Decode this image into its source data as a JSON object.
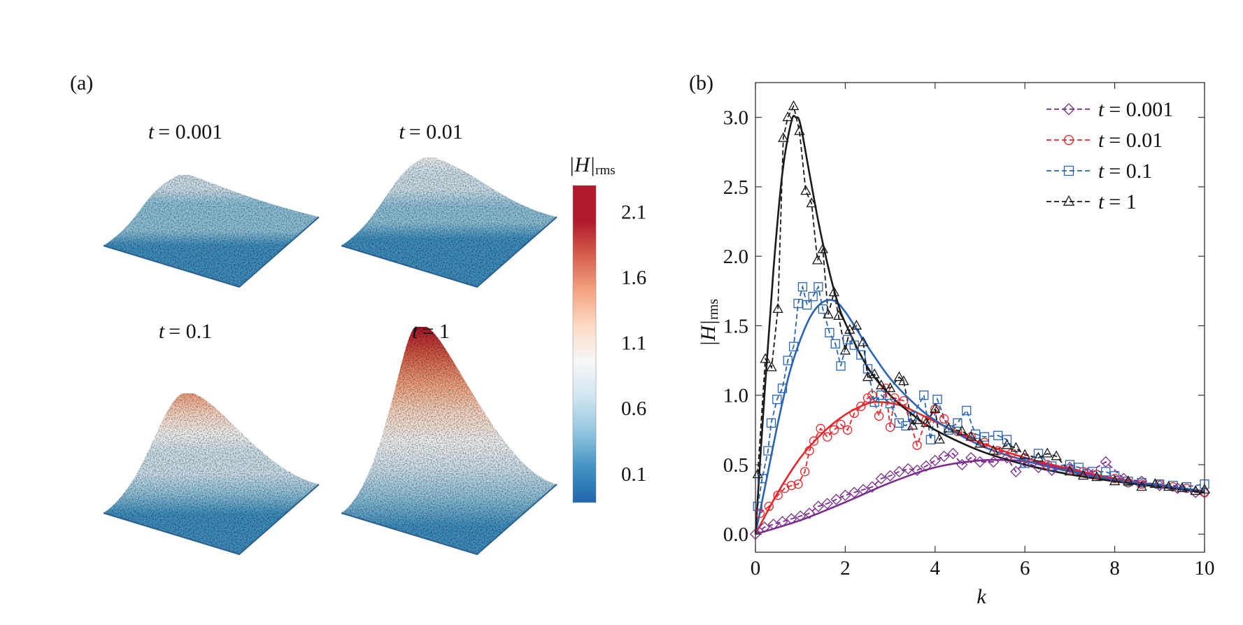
{
  "panel_a": {
    "label": "(a)",
    "surfaces": [
      {
        "title": "t = 0.001",
        "t": "t",
        "val": "= 0.001",
        "peak_level": 0.75
      },
      {
        "title": "t = 0.01",
        "t": "t",
        "val": "= 0.01",
        "peak_level": 0.9
      },
      {
        "title": "t = 0.1",
        "t": "t",
        "val": "= 0.1",
        "peak_level": 1.4
      },
      {
        "title": "t = 1",
        "t": "t",
        "val": "= 1",
        "peak_level": 2.2
      }
    ],
    "colorbar": {
      "label_main": "|H|",
      "label_sub": "rms",
      "ticks": [
        "2.1",
        "1.6",
        "1.1",
        "0.6",
        "0.1"
      ],
      "tick_values": [
        2.1,
        1.6,
        1.1,
        0.6,
        0.1
      ],
      "range": [
        -0.12,
        2.3
      ],
      "colormap": [
        "#2166ac",
        "#4393c3",
        "#92c5de",
        "#d1e5f0",
        "#f7f7f7",
        "#fddbc7",
        "#f4a582",
        "#d6604d",
        "#b2182b",
        "#b2182b"
      ]
    }
  },
  "chart_data": {
    "type": "line",
    "panel_label": "(b)",
    "xlabel": "k",
    "ylabel_main": "|H|",
    "ylabel_sub": "rms",
    "xlim": [
      0,
      10
    ],
    "ylim": [
      -0.13,
      3.25
    ],
    "xticks": [
      "0",
      "2",
      "4",
      "6",
      "8",
      "10"
    ],
    "xtick_values": [
      0,
      2,
      4,
      6,
      8,
      10
    ],
    "yticks": [
      "0.0",
      "0.5",
      "1.0",
      "1.5",
      "2.0",
      "2.5",
      "3.0"
    ],
    "ytick_values": [
      0,
      0.5,
      1.0,
      1.5,
      2.0,
      2.5,
      3.0
    ],
    "grid": false,
    "legend_position": "top-right",
    "series": [
      {
        "name": "t = 0.001",
        "t": "t",
        "val": "= 0.001",
        "color": "#7b2d8e",
        "marker": "diamond",
        "points": [
          [
            0,
            0.0
          ],
          [
            0.2,
            0.05
          ],
          [
            0.4,
            0.07
          ],
          [
            0.6,
            0.09
          ],
          [
            0.8,
            0.11
          ],
          [
            1.0,
            0.13
          ],
          [
            1.2,
            0.15
          ],
          [
            1.4,
            0.2
          ],
          [
            1.6,
            0.22
          ],
          [
            1.8,
            0.25
          ],
          [
            2.0,
            0.28
          ],
          [
            2.2,
            0.3
          ],
          [
            2.4,
            0.32
          ],
          [
            2.6,
            0.34
          ],
          [
            2.8,
            0.4
          ],
          [
            3.0,
            0.42
          ],
          [
            3.2,
            0.45
          ],
          [
            3.4,
            0.47
          ],
          [
            3.6,
            0.46
          ],
          [
            3.8,
            0.49
          ],
          [
            4.0,
            0.53
          ],
          [
            4.2,
            0.56
          ],
          [
            4.4,
            0.58
          ],
          [
            4.6,
            0.5
          ],
          [
            4.8,
            0.55
          ],
          [
            5.0,
            0.52
          ],
          [
            5.3,
            0.52
          ],
          [
            5.6,
            0.55
          ],
          [
            5.8,
            0.45
          ],
          [
            6.0,
            0.52
          ],
          [
            6.3,
            0.48
          ],
          [
            6.6,
            0.46
          ],
          [
            7.0,
            0.48
          ],
          [
            7.4,
            0.44
          ],
          [
            7.8,
            0.52
          ],
          [
            8.2,
            0.4
          ],
          [
            8.6,
            0.38
          ],
          [
            9.0,
            0.35
          ],
          [
            9.4,
            0.33
          ],
          [
            9.8,
            0.3
          ],
          [
            10,
            0.3
          ]
        ],
        "fit": [
          [
            0,
            0
          ],
          [
            1,
            0.1
          ],
          [
            2,
            0.23
          ],
          [
            3,
            0.37
          ],
          [
            4,
            0.48
          ],
          [
            5,
            0.53
          ],
          [
            5.8,
            0.53
          ],
          [
            6.5,
            0.5
          ],
          [
            7,
            0.46
          ],
          [
            8,
            0.4
          ],
          [
            9,
            0.35
          ],
          [
            10,
            0.31
          ]
        ]
      },
      {
        "name": "t = 0.01",
        "t": "t",
        "val": "= 0.01",
        "color": "#e8262a",
        "marker": "circle",
        "points": [
          [
            0.1,
            0.15
          ],
          [
            0.3,
            0.2
          ],
          [
            0.5,
            0.28
          ],
          [
            0.65,
            0.33
          ],
          [
            0.8,
            0.35
          ],
          [
            0.95,
            0.36
          ],
          [
            1.1,
            0.45
          ],
          [
            1.2,
            0.6
          ],
          [
            1.3,
            0.67
          ],
          [
            1.45,
            0.76
          ],
          [
            1.6,
            0.7
          ],
          [
            1.75,
            0.75
          ],
          [
            1.9,
            0.79
          ],
          [
            2.05,
            0.75
          ],
          [
            2.2,
            0.87
          ],
          [
            2.35,
            0.92
          ],
          [
            2.5,
            0.98
          ],
          [
            2.6,
            1.0
          ],
          [
            2.75,
            0.85
          ],
          [
            2.9,
            1.05
          ],
          [
            3.0,
            0.77
          ],
          [
            3.1,
            0.98
          ],
          [
            3.3,
            0.96
          ],
          [
            3.6,
            0.64
          ],
          [
            3.8,
            0.82
          ],
          [
            4.0,
            0.9
          ],
          [
            4.2,
            0.83
          ],
          [
            4.5,
            0.74
          ],
          [
            4.8,
            0.7
          ],
          [
            5.1,
            0.66
          ],
          [
            5.4,
            0.6
          ],
          [
            5.7,
            0.58
          ],
          [
            6.0,
            0.55
          ],
          [
            6.5,
            0.5
          ],
          [
            7.0,
            0.46
          ],
          [
            7.3,
            0.45
          ],
          [
            7.6,
            0.43
          ],
          [
            8.0,
            0.4
          ],
          [
            8.3,
            0.37
          ],
          [
            8.6,
            0.36
          ],
          [
            9.0,
            0.36
          ],
          [
            9.3,
            0.34
          ],
          [
            9.6,
            0.33
          ],
          [
            10,
            0.3
          ]
        ],
        "fit": [
          [
            0,
            0
          ],
          [
            0.5,
            0.3
          ],
          [
            1,
            0.55
          ],
          [
            1.5,
            0.73
          ],
          [
            2,
            0.86
          ],
          [
            2.5,
            0.94
          ],
          [
            2.8,
            0.95
          ],
          [
            3.2,
            0.93
          ],
          [
            3.5,
            0.89
          ],
          [
            4,
            0.81
          ],
          [
            5,
            0.66
          ],
          [
            6,
            0.55
          ],
          [
            7,
            0.47
          ],
          [
            8,
            0.4
          ],
          [
            9,
            0.35
          ],
          [
            10,
            0.31
          ]
        ]
      },
      {
        "name": "t = 0.1",
        "t": "t",
        "val": "= 0.1",
        "color": "#2a64b4",
        "marker": "square",
        "points": [
          [
            0.05,
            0.2
          ],
          [
            0.15,
            0.4
          ],
          [
            0.28,
            0.6
          ],
          [
            0.35,
            0.8
          ],
          [
            0.48,
            0.97
          ],
          [
            0.6,
            1.05
          ],
          [
            0.72,
            1.25
          ],
          [
            0.85,
            1.35
          ],
          [
            0.95,
            1.66
          ],
          [
            1.05,
            1.78
          ],
          [
            1.15,
            1.65
          ],
          [
            1.28,
            1.71
          ],
          [
            1.4,
            1.78
          ],
          [
            1.5,
            1.62
          ],
          [
            1.65,
            1.45
          ],
          [
            1.78,
            1.37
          ],
          [
            1.9,
            1.21
          ],
          [
            2.05,
            1.4
          ],
          [
            2.2,
            1.36
          ],
          [
            2.35,
            1.29
          ],
          [
            2.5,
            1.19
          ],
          [
            2.65,
            0.95
          ],
          [
            2.8,
            1.0
          ],
          [
            3.0,
            0.94
          ],
          [
            3.2,
            0.8
          ],
          [
            3.35,
            0.78
          ],
          [
            3.5,
            0.85
          ],
          [
            3.75,
            1.0
          ],
          [
            3.9,
            0.68
          ],
          [
            4.05,
            0.97
          ],
          [
            4.3,
            0.75
          ],
          [
            4.5,
            0.8
          ],
          [
            4.7,
            0.89
          ],
          [
            4.9,
            0.72
          ],
          [
            5.1,
            0.7
          ],
          [
            5.4,
            0.71
          ],
          [
            5.6,
            0.68
          ],
          [
            6.0,
            0.51
          ],
          [
            6.3,
            0.58
          ],
          [
            6.6,
            0.49
          ],
          [
            7.0,
            0.5
          ],
          [
            7.2,
            0.48
          ],
          [
            7.5,
            0.45
          ],
          [
            7.8,
            0.45
          ],
          [
            8.0,
            0.42
          ],
          [
            8.3,
            0.38
          ],
          [
            8.6,
            0.37
          ],
          [
            9.0,
            0.36
          ],
          [
            9.3,
            0.35
          ],
          [
            9.6,
            0.34
          ],
          [
            10,
            0.36
          ]
        ],
        "fit": [
          [
            0,
            0
          ],
          [
            0.25,
            0.4
          ],
          [
            0.5,
            0.8
          ],
          [
            0.75,
            1.15
          ],
          [
            1.0,
            1.4
          ],
          [
            1.25,
            1.58
          ],
          [
            1.5,
            1.67
          ],
          [
            1.75,
            1.68
          ],
          [
            2.0,
            1.6
          ],
          [
            2.5,
            1.35
          ],
          [
            3,
            1.12
          ],
          [
            3.5,
            0.95
          ],
          [
            4,
            0.82
          ],
          [
            5,
            0.64
          ],
          [
            6,
            0.53
          ],
          [
            7,
            0.45
          ],
          [
            8,
            0.39
          ],
          [
            9,
            0.35
          ],
          [
            10,
            0.31
          ]
        ]
      },
      {
        "name": "t = 1",
        "t": "t",
        "val": "= 1",
        "color": "#1a1a1a",
        "marker": "triangle",
        "points": [
          [
            0.05,
            0.43
          ],
          [
            0.22,
            1.26
          ],
          [
            0.36,
            1.2
          ],
          [
            0.5,
            1.62
          ],
          [
            0.62,
            2.85
          ],
          [
            0.72,
            3.0
          ],
          [
            0.85,
            3.08
          ],
          [
            0.98,
            2.9
          ],
          [
            1.12,
            2.47
          ],
          [
            1.25,
            2.38
          ],
          [
            1.38,
            1.97
          ],
          [
            1.5,
            2.05
          ],
          [
            1.62,
            1.58
          ],
          [
            1.75,
            1.74
          ],
          [
            1.85,
            1.57
          ],
          [
            2.0,
            1.32
          ],
          [
            2.1,
            1.47
          ],
          [
            2.25,
            1.5
          ],
          [
            2.4,
            1.38
          ],
          [
            2.5,
            1.13
          ],
          [
            2.65,
            1.15
          ],
          [
            2.8,
            1.07
          ],
          [
            3.0,
            1.05
          ],
          [
            3.2,
            1.13
          ],
          [
            3.3,
            1.1
          ],
          [
            3.5,
            0.78
          ],
          [
            3.6,
            0.82
          ],
          [
            3.8,
            0.8
          ],
          [
            4.0,
            0.9
          ],
          [
            4.1,
            0.68
          ],
          [
            4.3,
            0.76
          ],
          [
            4.6,
            0.74
          ],
          [
            4.8,
            0.7
          ],
          [
            5.0,
            0.65
          ],
          [
            5.3,
            0.6
          ],
          [
            5.6,
            0.64
          ],
          [
            5.8,
            0.62
          ],
          [
            6.0,
            0.57
          ],
          [
            6.3,
            0.55
          ],
          [
            6.5,
            0.58
          ],
          [
            6.7,
            0.56
          ],
          [
            7.0,
            0.45
          ],
          [
            7.3,
            0.42
          ],
          [
            7.6,
            0.41
          ],
          [
            8.0,
            0.38
          ],
          [
            8.3,
            0.38
          ],
          [
            8.6,
            0.34
          ],
          [
            8.9,
            0.36
          ],
          [
            9.2,
            0.34
          ],
          [
            9.5,
            0.33
          ],
          [
            9.8,
            0.31
          ],
          [
            10,
            0.32
          ]
        ],
        "fit": [
          [
            0,
            0
          ],
          [
            0.2,
            1.0
          ],
          [
            0.4,
            1.9
          ],
          [
            0.6,
            2.6
          ],
          [
            0.8,
            2.97
          ],
          [
            0.9,
            3.0
          ],
          [
            1.0,
            2.95
          ],
          [
            1.2,
            2.6
          ],
          [
            1.4,
            2.25
          ],
          [
            1.6,
            1.95
          ],
          [
            1.8,
            1.7
          ],
          [
            2.0,
            1.52
          ],
          [
            2.5,
            1.2
          ],
          [
            3.0,
            1.0
          ],
          [
            3.5,
            0.86
          ],
          [
            4,
            0.75
          ],
          [
            5,
            0.6
          ],
          [
            6,
            0.5
          ],
          [
            7,
            0.43
          ],
          [
            8,
            0.38
          ],
          [
            9,
            0.34
          ],
          [
            10,
            0.3
          ]
        ]
      }
    ]
  }
}
